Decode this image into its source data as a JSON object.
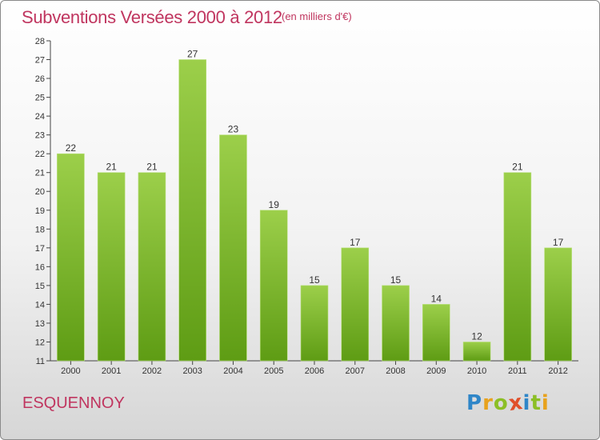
{
  "title": "Subventions Versées 2000 à 2012",
  "subtitle": "(en milliers d'€)",
  "commune": "ESQUENNOY",
  "brand": {
    "text": "Proxiti",
    "letters": [
      {
        "ch": "P",
        "color": "#2f86c8"
      },
      {
        "ch": "r",
        "color": "#e8a21d"
      },
      {
        "ch": "o",
        "color": "#8cbf26"
      },
      {
        "ch": "x",
        "color": "#e04f2a"
      },
      {
        "ch": "i",
        "color": "#2f86c8"
      },
      {
        "ch": "t",
        "color": "#8cbf26"
      },
      {
        "ch": "i",
        "color": "#e8a21d"
      }
    ]
  },
  "colors": {
    "title": "#c0355f",
    "bar_top": "#9ccf4a",
    "bar_bottom": "#5e9c14",
    "axis": "#444444"
  },
  "chart_data": {
    "type": "bar",
    "categories": [
      "2000",
      "2001",
      "2002",
      "2003",
      "2004",
      "2005",
      "2006",
      "2007",
      "2008",
      "2009",
      "2010",
      "2011",
      "2012"
    ],
    "values": [
      22,
      21,
      21,
      27,
      23,
      19,
      15,
      17,
      15,
      14,
      12,
      21,
      17
    ],
    "ylim": [
      11,
      28
    ],
    "yticks": [
      11,
      12,
      13,
      14,
      15,
      16,
      17,
      18,
      19,
      20,
      21,
      22,
      23,
      24,
      25,
      26,
      27,
      28
    ],
    "grid": false,
    "title": "Subventions Versées 2000 à 2012",
    "xlabel": "",
    "ylabel": ""
  }
}
